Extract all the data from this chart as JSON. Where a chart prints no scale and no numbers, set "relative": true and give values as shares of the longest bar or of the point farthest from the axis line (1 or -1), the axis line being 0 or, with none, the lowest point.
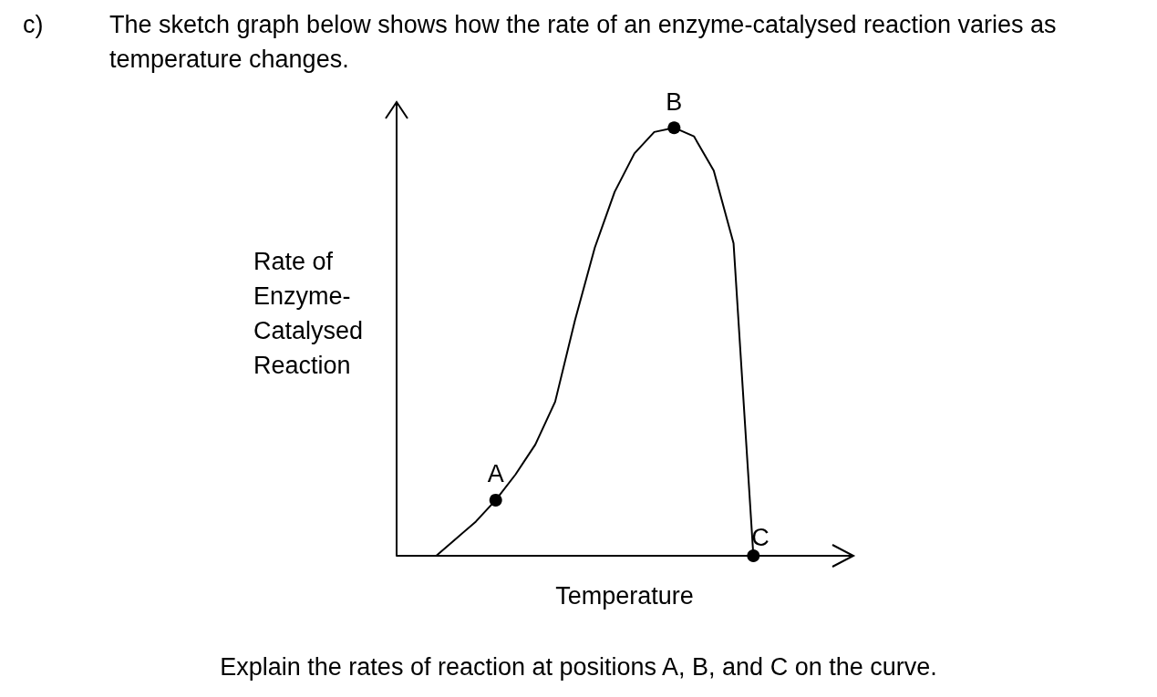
{
  "chart_data": {
    "type": "line",
    "title": "The sketch graph below shows how the rate of an enzyme-catalysed reaction varies as temperature changes.",
    "xlabel": "Temperature",
    "ylabel": "Rate of Enzyme-Catalysed Reaction",
    "annotations": [
      "c)",
      "Explain the rates of reaction at positions A, B, and C on the curve.",
      {
        "text": "A",
        "y": 0.13
      },
      {
        "text": "B",
        "y": 1
      },
      {
        "text": "C",
        "y": 0
      }
    ],
    "relative": true,
    "categories": [
      null,
      null,
      null,
      null,
      null,
      null,
      null,
      null,
      null,
      null,
      null,
      null,
      null,
      null,
      null,
      null,
      null,
      null,
      null,
      null,
      null,
      null,
      null,
      null
    ],
    "series": [
      {
        "type": "line",
        "color": "#000000",
        "marker": "none",
        "values": [
          null,
          null,
          0,
          0.04,
          0.08,
          0.13,
          0.19,
          0.26,
          0.36,
          0.55,
          0.72,
          0.85,
          0.94,
          0.99,
          1,
          0.98,
          0.9,
          0.73,
          0,
          null,
          null,
          null,
          null,
          null
        ]
      },
      {
        "type": "line",
        "color": "#000000",
        "marker": "circle",
        "values": [
          null,
          null,
          null,
          null,
          null,
          0.13,
          null,
          null,
          null,
          null,
          null,
          null,
          null,
          null,
          1,
          null,
          null,
          null,
          0,
          null,
          null,
          null,
          null,
          null
        ]
      }
    ]
  }
}
